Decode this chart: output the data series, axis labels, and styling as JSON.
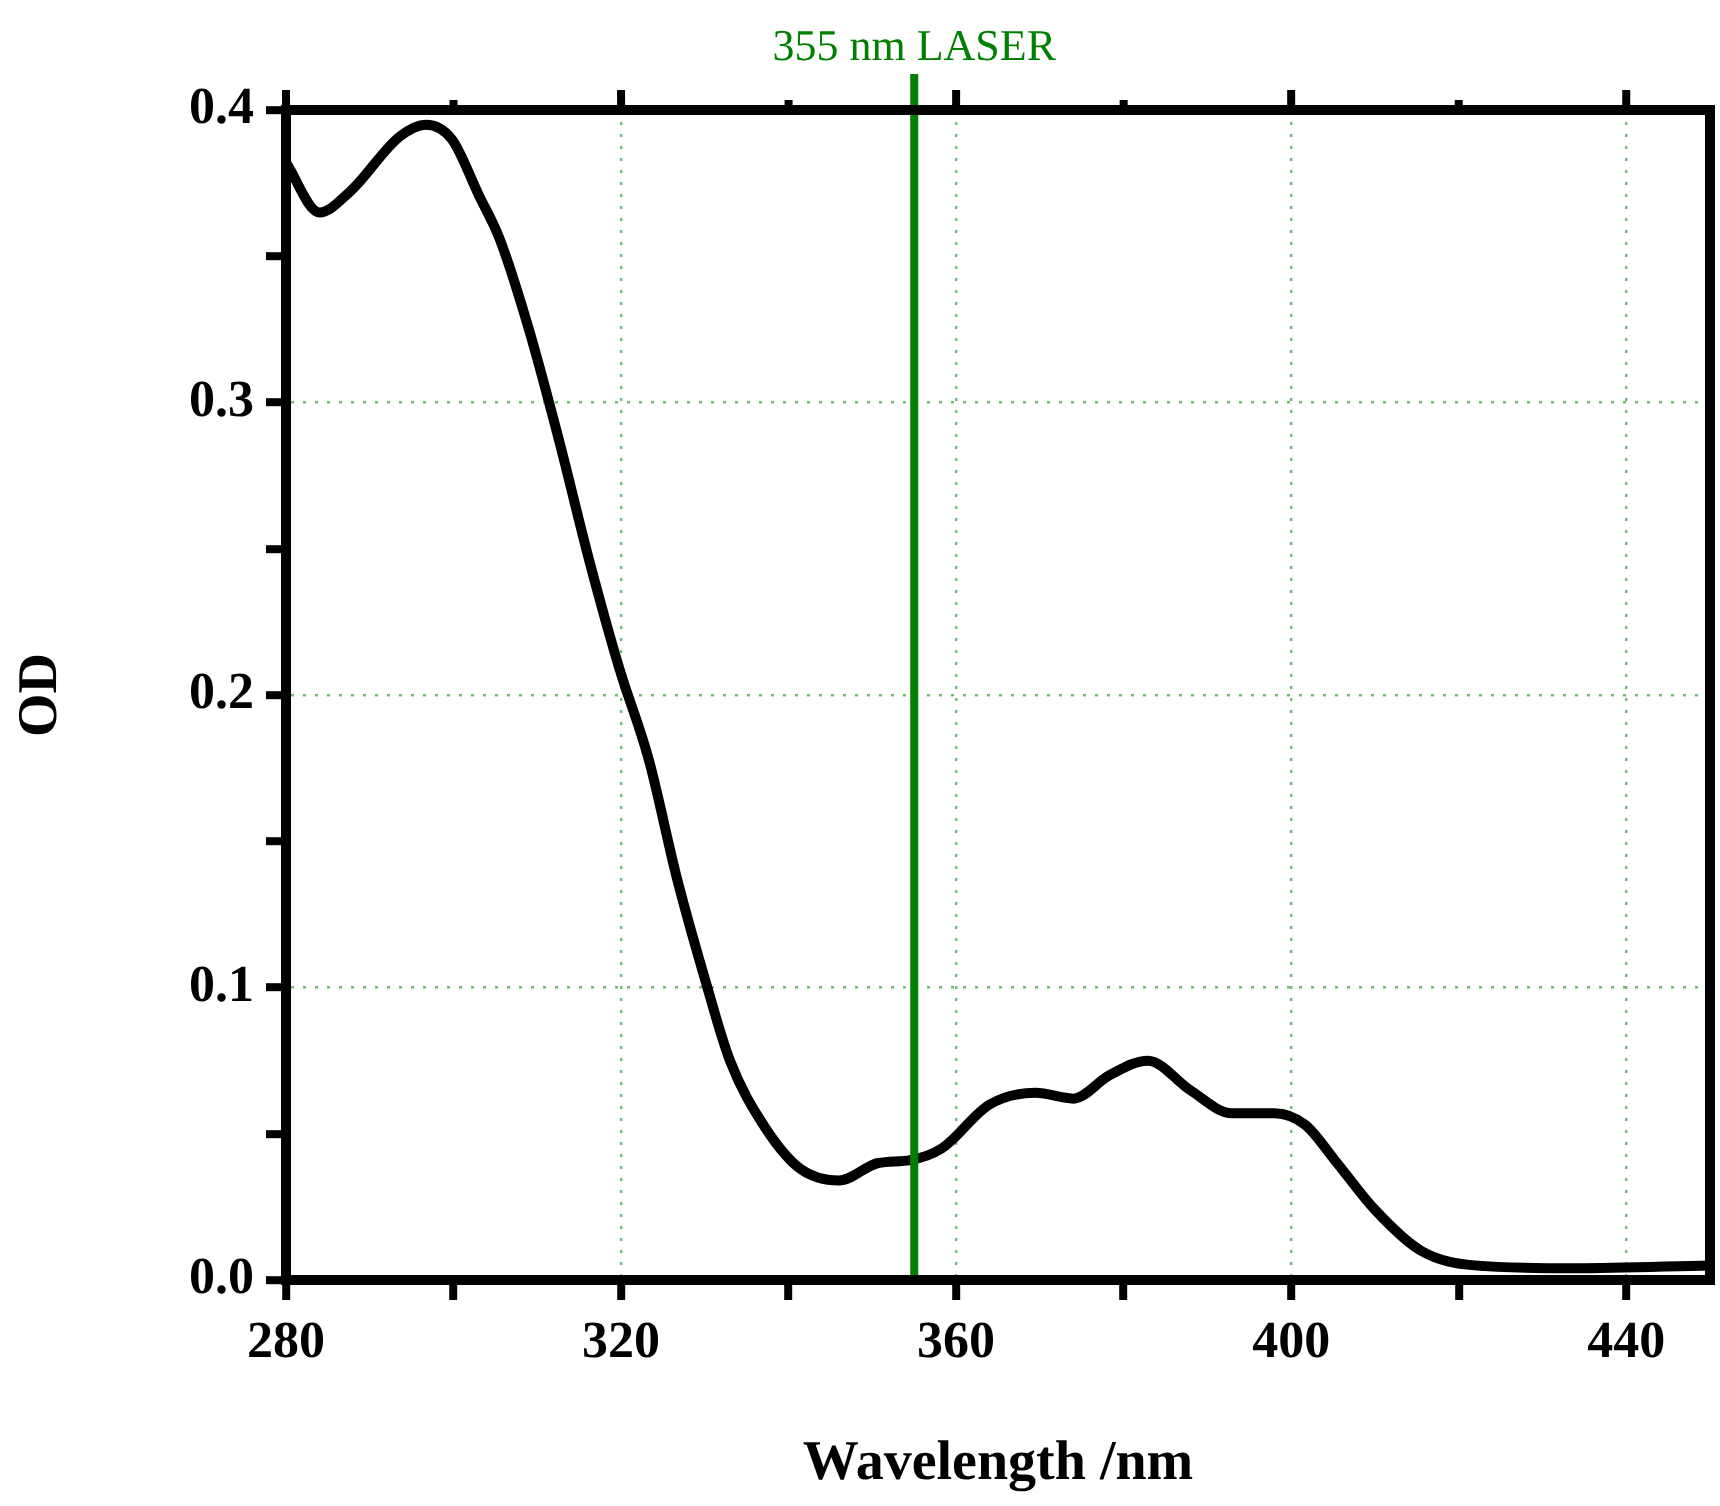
{
  "chart_data": {
    "type": "line",
    "xlabel": "Wavelength /nm",
    "ylabel": "OD",
    "x": [
      280,
      284,
      287.6,
      293.6,
      296.7,
      299.8,
      303,
      305.5,
      309,
      312.6,
      316.2,
      319.8,
      323.3,
      326.7,
      330,
      333,
      337,
      341.4,
      346,
      350.7,
      354.5,
      358.3,
      364,
      369.5,
      374,
      378.3,
      382.9,
      387.9,
      392.9,
      398,
      401.7,
      405.2,
      410,
      415.5,
      421.9,
      433.8,
      450
    ],
    "series": [
      {
        "color": "#000000",
        "values": [
          0.382,
          0.365,
          0.372,
          0.391,
          0.395,
          0.39,
          0.371,
          0.356,
          0.325,
          0.287,
          0.246,
          0.209,
          0.178,
          0.137,
          0.103,
          0.075,
          0.053,
          0.038,
          0.034,
          0.04,
          0.041,
          0.045,
          0.06,
          0.064,
          0.062,
          0.07,
          0.075,
          0.065,
          0.057,
          0.057,
          0.053,
          0.041,
          0.024,
          0.01,
          0.005,
          0.004,
          0.005
        ]
      }
    ],
    "xlim": [
      280,
      450
    ],
    "xticks": [
      280,
      {
        "value": 300,
        "label": null
      },
      320,
      {
        "value": 340,
        "label": null
      },
      360,
      {
        "value": 380,
        "label": null
      },
      400,
      {
        "value": 420,
        "label": null
      },
      440
    ],
    "ylim": [
      0,
      0.4
    ],
    "yticks": [
      {
        "value": 0,
        "label": "0.0"
      },
      {
        "value": 0.05,
        "label": null
      },
      {
        "value": 0.1,
        "label": "0.1"
      },
      {
        "value": 0.15,
        "label": null
      },
      {
        "value": 0.2,
        "label": "0.2"
      },
      {
        "value": 0.25,
        "label": null
      },
      {
        "value": 0.3,
        "label": "0.3"
      },
      {
        "value": 0.35,
        "label": null
      },
      {
        "value": 0.4,
        "label": "0.4"
      }
    ],
    "grid": true,
    "legend": false,
    "marker": "none",
    "line_style": "solid",
    "ref_lines": [
      {
        "axis": "x",
        "value": 355,
        "label": "355 nm LASER",
        "color": "#008000"
      }
    ]
  }
}
